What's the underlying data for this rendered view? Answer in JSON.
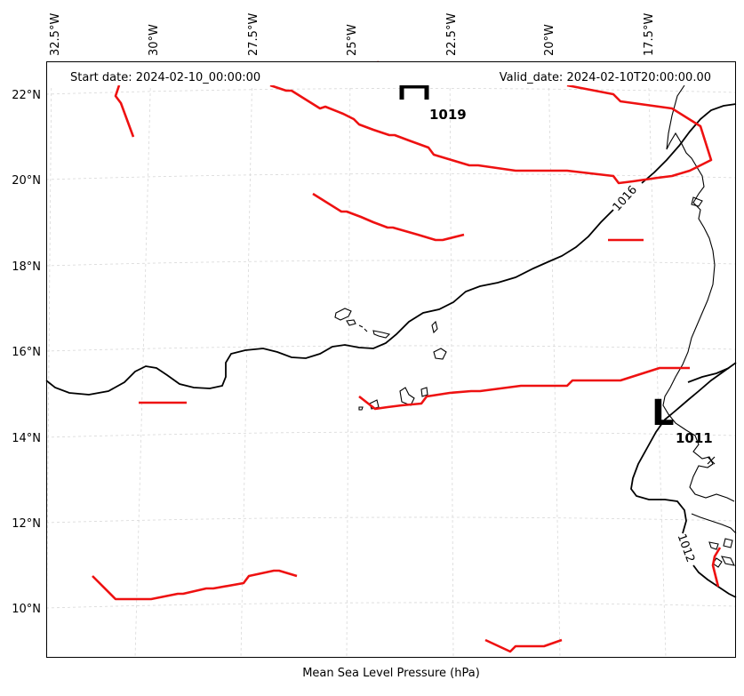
{
  "header": {
    "start_date": "Start date: 2024-02-10_00:00:00",
    "valid_date": "Valid_date: 2024-02-10T20:00:00.00"
  },
  "footer": {
    "caption": "Mean Sea Level Pressure (hPa)"
  },
  "axes": {
    "lon_labels": [
      "32.5°W",
      "30°W",
      "27.5°W",
      "25°W",
      "22.5°W",
      "20°W",
      "17.5°W"
    ],
    "lat_labels": [
      "22°N",
      "20°N",
      "18°N",
      "16°N",
      "14°N",
      "12°N",
      "10°N"
    ]
  },
  "pressure_centers": {
    "high": {
      "letter": "H",
      "value": "1019"
    },
    "low": {
      "letter": "L",
      "value": "1011"
    }
  },
  "isobars": {
    "north": {
      "label": "1016"
    },
    "south": {
      "label": "1012"
    }
  },
  "colors": {
    "fronts": "#ee1111",
    "isobars": "#000000",
    "grid": "#d8d8d8"
  }
}
